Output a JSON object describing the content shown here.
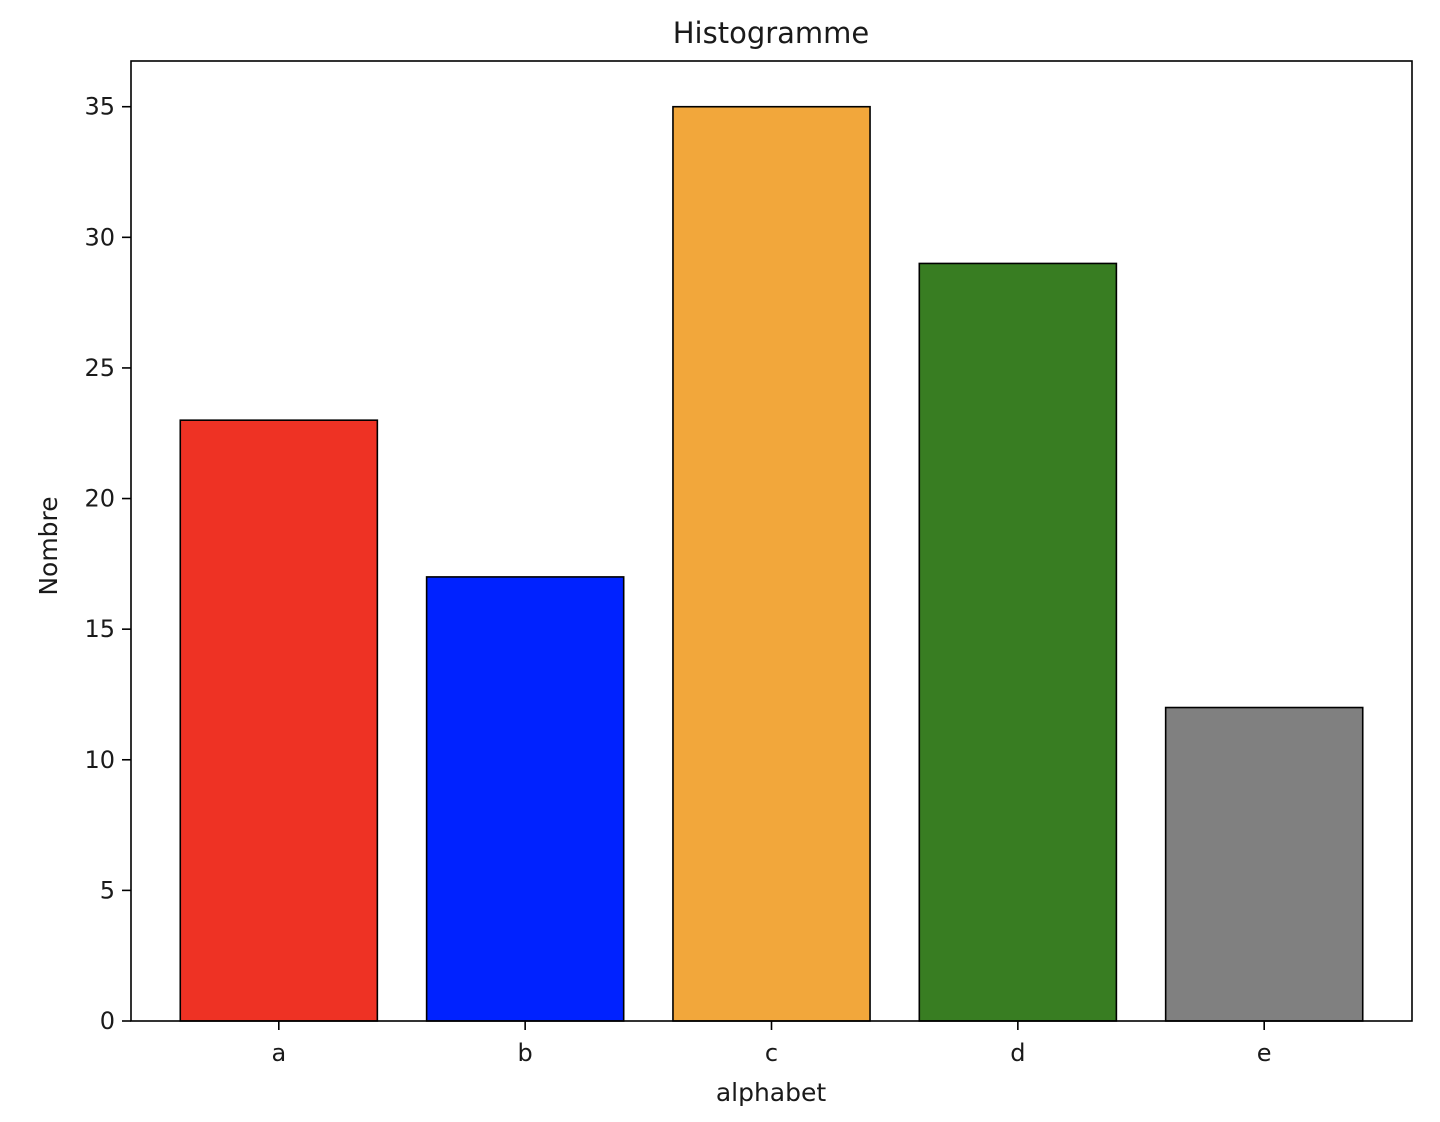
{
  "chart_data": {
    "type": "bar",
    "title": "Histogramme",
    "xlabel": "alphabet",
    "ylabel": "Nombre",
    "categories": [
      "a",
      "b",
      "c",
      "d",
      "e"
    ],
    "values": [
      23,
      17,
      35,
      29,
      12
    ],
    "colors": [
      "#ee3224",
      "#0022ff",
      "#f2a73b",
      "#387d22",
      "#808080"
    ],
    "edge_color": "#000000",
    "yticks": [
      0,
      5,
      10,
      15,
      20,
      25,
      30,
      35
    ],
    "ylim": [
      0,
      36.75
    ],
    "grid": false,
    "legend": false
  }
}
